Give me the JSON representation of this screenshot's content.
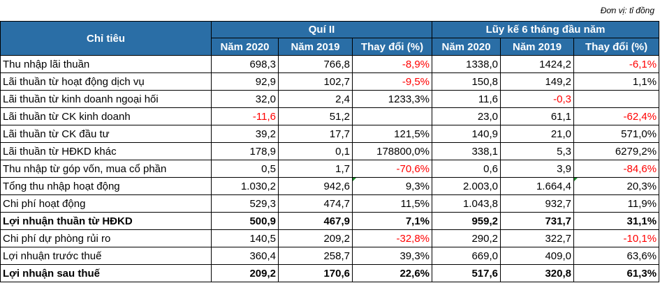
{
  "unit_note": "Đơn vị: tỉ đồng",
  "header": {
    "indicator": "Chỉ tiêu",
    "group1": "Quí II",
    "group2": "Lũy kế 6 tháng đầu năm",
    "cols": [
      "Năm 2020",
      "Năm 2019",
      "Thay đổi (%)",
      "Năm 2020",
      "Năm 2019",
      "Thay đổi (%)"
    ]
  },
  "rows": [
    {
      "label": "Thu nhập lãi thuần",
      "bold": false,
      "cells": [
        "698,3",
        "766,8",
        "-8,9%",
        "1338,0",
        "1424,2",
        "-6,1%"
      ],
      "neg": [
        false,
        false,
        true,
        false,
        false,
        true
      ],
      "mark": [
        false,
        false,
        false,
        false,
        false,
        false
      ]
    },
    {
      "label": "Lãi thuần từ hoạt động dịch vụ",
      "bold": false,
      "cells": [
        "92,9",
        "102,7",
        "-9,5%",
        "150,8",
        "149,2",
        "1,1%"
      ],
      "neg": [
        false,
        false,
        true,
        false,
        false,
        false
      ],
      "mark": [
        false,
        false,
        false,
        false,
        false,
        false
      ]
    },
    {
      "label": "Lãi thuần từ kinh doanh ngoại hối",
      "bold": false,
      "cells": [
        "32,0",
        "2,4",
        "1233,3%",
        "11,6",
        "-0,3",
        ""
      ],
      "neg": [
        false,
        false,
        false,
        false,
        true,
        false
      ],
      "mark": [
        false,
        false,
        false,
        false,
        false,
        false
      ]
    },
    {
      "label": "Lãi thuần từ CK kinh doanh",
      "bold": false,
      "cells": [
        "-11,6",
        "51,2",
        "",
        "23,0",
        "61,1",
        "-62,4%"
      ],
      "neg": [
        true,
        false,
        false,
        false,
        false,
        true
      ],
      "mark": [
        false,
        false,
        false,
        false,
        false,
        false
      ]
    },
    {
      "label": "Lãi thuần từ CK đầu tư",
      "bold": false,
      "cells": [
        "39,2",
        "17,7",
        "121,5%",
        "140,9",
        "21,0",
        "571,0%"
      ],
      "neg": [
        false,
        false,
        false,
        false,
        false,
        false
      ],
      "mark": [
        false,
        false,
        false,
        false,
        false,
        false
      ]
    },
    {
      "label": "Lãi thuần từ HĐKD khác",
      "bold": false,
      "cells": [
        "178,9",
        "0,1",
        "178800,0%",
        "338,1",
        "5,3",
        "6279,2%"
      ],
      "neg": [
        false,
        false,
        false,
        false,
        false,
        false
      ],
      "mark": [
        false,
        false,
        false,
        false,
        false,
        false
      ]
    },
    {
      "label": "Thu nhập từ góp vốn, mua cổ phần",
      "bold": false,
      "cells": [
        "0,5",
        "1,7",
        "-70,6%",
        "0,6",
        "3,9",
        "-84,6%"
      ],
      "neg": [
        false,
        false,
        true,
        false,
        false,
        true
      ],
      "mark": [
        false,
        false,
        false,
        false,
        false,
        false
      ]
    },
    {
      "label": "Tổng thu nhập hoạt động",
      "bold": false,
      "cells": [
        "1.030,2",
        "942,6",
        "9,3%",
        "2.003,0",
        "1.664,4",
        "20,3%"
      ],
      "neg": [
        false,
        false,
        false,
        false,
        false,
        false
      ],
      "mark": [
        false,
        false,
        true,
        false,
        false,
        true
      ]
    },
    {
      "label": "Chi phí hoạt động",
      "bold": false,
      "cells": [
        "529,3",
        "474,7",
        "11,5%",
        "1.043,8",
        "932,7",
        "11,9%"
      ],
      "neg": [
        false,
        false,
        false,
        false,
        false,
        false
      ],
      "mark": [
        false,
        false,
        false,
        false,
        false,
        false
      ]
    },
    {
      "label": "Lợi nhuận thuần từ HĐKD",
      "bold": true,
      "cells": [
        "500,9",
        "467,9",
        "7,1%",
        "959,2",
        "731,7",
        "31,1%"
      ],
      "neg": [
        false,
        false,
        false,
        false,
        false,
        false
      ],
      "mark": [
        false,
        false,
        false,
        false,
        false,
        false
      ]
    },
    {
      "label": "Chi phí dự phòng rủi ro",
      "bold": false,
      "cells": [
        "140,5",
        "209,2",
        "-32,8%",
        "290,2",
        "322,7",
        "-10,1%"
      ],
      "neg": [
        false,
        false,
        true,
        false,
        false,
        true
      ],
      "mark": [
        false,
        false,
        false,
        false,
        false,
        false
      ]
    },
    {
      "label": "Lợi nhuận trước thuế",
      "bold": false,
      "cells": [
        "360,4",
        "258,7",
        "39,3%",
        "669,0",
        "409,0",
        "63,6%"
      ],
      "neg": [
        false,
        false,
        false,
        false,
        false,
        false
      ],
      "mark": [
        false,
        false,
        false,
        false,
        false,
        false
      ]
    },
    {
      "label": "Lợi nhuận sau thuế",
      "bold": true,
      "cells": [
        "209,2",
        "170,6",
        "22,6%",
        "517,6",
        "320,8",
        "61,3%"
      ],
      "neg": [
        false,
        false,
        false,
        false,
        false,
        false
      ],
      "mark": [
        false,
        false,
        false,
        false,
        false,
        false
      ]
    }
  ],
  "colors": {
    "header_bg": "#2a6ea6",
    "header_text": "#ffffff",
    "negative": "#ff0000",
    "marker": "#1a8a2a"
  }
}
